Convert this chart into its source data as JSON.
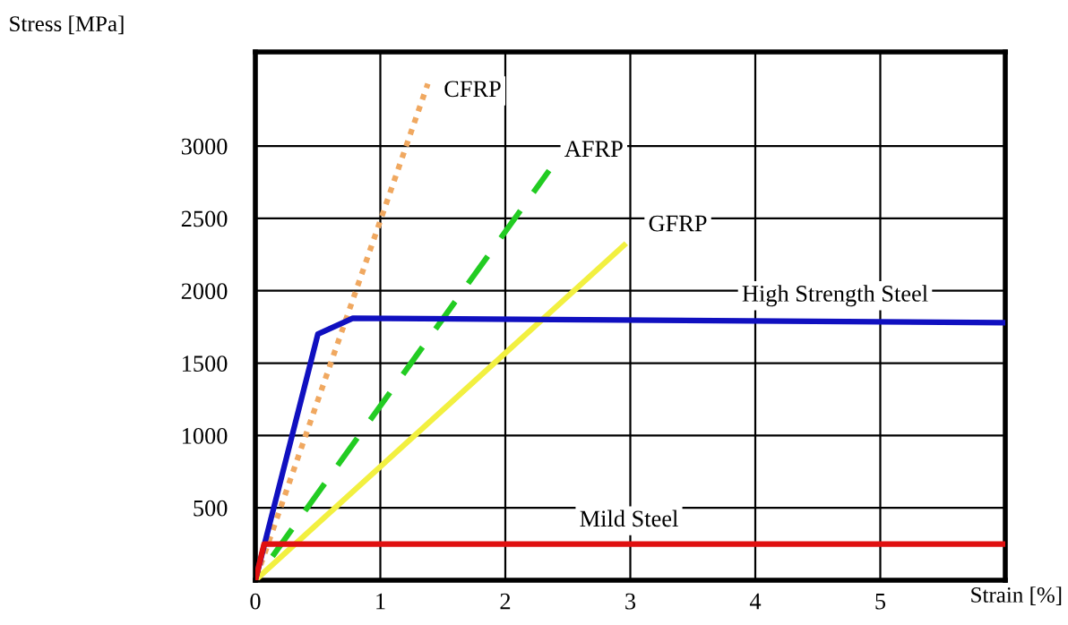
{
  "chart_data": {
    "type": "line",
    "xlabel": "Strain [%]",
    "ylabel": "Stress [MPa]",
    "xlim": [
      0,
      6
    ],
    "ylim": [
      0,
      3650
    ],
    "xticks": [
      0,
      1,
      2,
      3,
      4,
      5
    ],
    "yticks": [
      500,
      1000,
      1500,
      2000,
      2500,
      3000
    ],
    "grid": true,
    "legend": false,
    "series": [
      {
        "name": "CFRP",
        "color": "#f0a860",
        "line_style": "dotted",
        "x": [
          0,
          1.38
        ],
        "values": [
          0,
          3430
        ]
      },
      {
        "name": "AFRP",
        "color": "#22cc22",
        "line_style": "dashed",
        "x": [
          0,
          2.35
        ],
        "values": [
          0,
          2830
        ]
      },
      {
        "name": "GFRP",
        "color": "#f2f040",
        "line_style": "solid",
        "x": [
          0,
          2.95
        ],
        "values": [
          0,
          2315
        ]
      },
      {
        "name": "High Strength Steel",
        "color": "#1010c0",
        "line_style": "solid",
        "x": [
          0,
          0.5,
          0.78,
          6
        ],
        "values": [
          0,
          1700,
          1810,
          1780
        ]
      },
      {
        "name": "Mild Steel",
        "color": "#e01010",
        "line_style": "solid",
        "x": [
          0,
          0.07,
          6
        ],
        "values": [
          0,
          250,
          250
        ]
      }
    ]
  }
}
